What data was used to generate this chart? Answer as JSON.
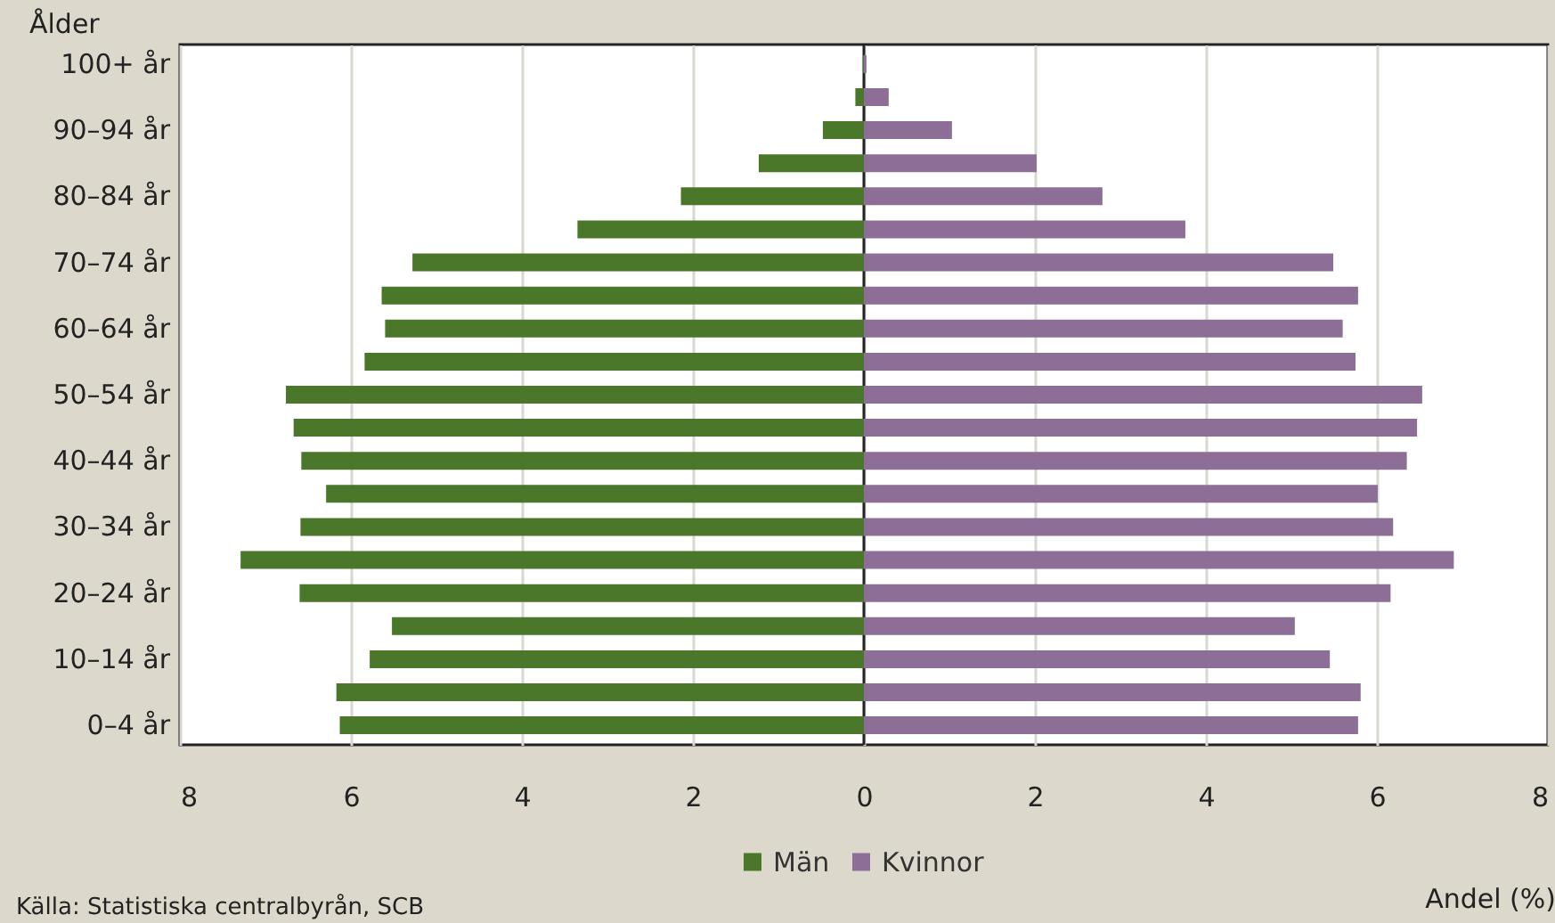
{
  "chart_data": {
    "type": "bar",
    "orientation": "horizontal",
    "ylabel": "Ålder",
    "xlabel": "Andel (%)",
    "categories": [
      "100+ år",
      null,
      "90–94 år",
      null,
      "80–84 år",
      null,
      "70–74 år",
      null,
      "60–64 år",
      null,
      "50–54 år",
      null,
      "40–44 år",
      null,
      "30–34 år",
      null,
      "20–24 år",
      null,
      "10–14 år",
      null,
      "0–4 år"
    ],
    "series": [
      {
        "name": "Män",
        "color": "#4a7729",
        "values": [
          -0.01,
          -0.1,
          -0.48,
          -1.23,
          -2.14,
          -3.35,
          -5.28,
          -5.64,
          -5.6,
          -5.84,
          -6.76,
          -6.67,
          -6.58,
          -6.29,
          -6.59,
          -7.29,
          -6.6,
          -5.52,
          -5.78,
          -6.17,
          -6.13
        ]
      },
      {
        "name": "Kvinnor",
        "color": "#8c6e96",
        "values": [
          0.03,
          0.29,
          1.03,
          2.02,
          2.79,
          3.76,
          5.49,
          5.78,
          5.6,
          5.75,
          6.53,
          6.47,
          6.35,
          6.01,
          6.19,
          6.9,
          6.16,
          5.04,
          5.45,
          5.81,
          5.78
        ]
      }
    ],
    "xlim": [
      -8,
      8
    ],
    "xticks": [
      {
        "value": -8,
        "label": "8"
      },
      {
        "value": -6,
        "label": "6"
      },
      {
        "value": -4,
        "label": "4"
      },
      {
        "value": -2,
        "label": "2"
      },
      0,
      2,
      4,
      6,
      8
    ],
    "grid": "x",
    "legend": "bottom",
    "stacked": true,
    "annotations": [
      "Källa: Statistiska centralbyrån, SCB"
    ]
  }
}
